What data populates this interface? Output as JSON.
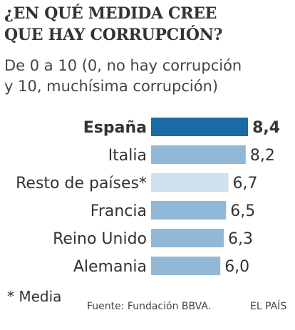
{
  "title_line1": "¿EN QUÉ MEDIDA CREE",
  "title_line2": "QUE HAY CORRUPCIÓN?",
  "subtitle_line1": "De 0 a 10 (0, no hay corrupción",
  "subtitle_line2": "y 10, muchísima corrupción)",
  "footnote": "* Media",
  "source": "Fuente: Fundación BBVA.",
  "brand": "EL PAÍS",
  "colors": {
    "highlight": "#1b6aa5",
    "normal": "#92b8d8",
    "average": "#cfe1ee",
    "text": "#333333"
  },
  "chart_data": {
    "type": "bar",
    "orientation": "horizontal",
    "categories": [
      "España",
      "Italia",
      "Resto de países*",
      "Francia",
      "Reino Unido",
      "Alemania"
    ],
    "values": [
      8.4,
      8.2,
      6.7,
      6.5,
      6.3,
      6.0
    ],
    "value_labels": [
      "8,4",
      "8,2",
      "6,7",
      "6,5",
      "6,3",
      "6,0"
    ],
    "highlight": "España",
    "average_category": "Resto de países*",
    "xlim": [
      0,
      10
    ],
    "grid": false,
    "legend": "none"
  }
}
